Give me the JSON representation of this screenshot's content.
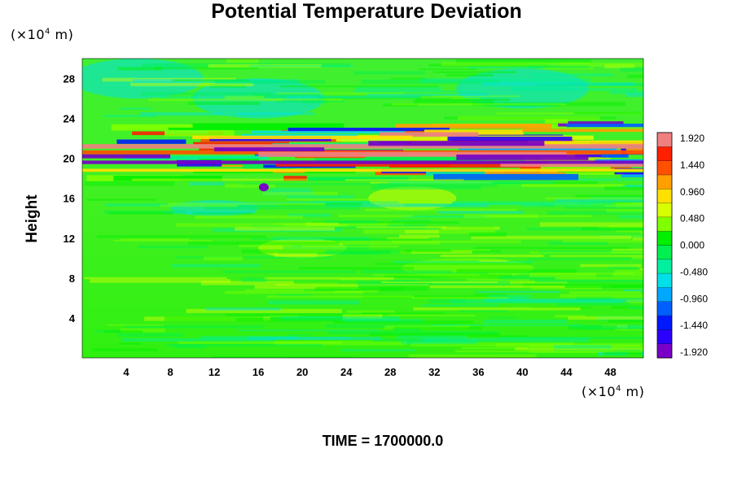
{
  "chart_data": {
    "type": "heatmap",
    "title": "Potential Temperature Deviation",
    "ylabel": "Height",
    "xlabel": "",
    "x_unit": {
      "prefix": "(×10",
      "exp": "4",
      "suffix": " m)"
    },
    "y_unit": {
      "prefix": "(×10",
      "exp": "4",
      "suffix": " m)"
    },
    "xlim": [
      0,
      51
    ],
    "ylim": [
      0,
      30
    ],
    "x_ticks": [
      4,
      8,
      12,
      16,
      20,
      24,
      28,
      32,
      36,
      40,
      44,
      48
    ],
    "y_ticks": [
      4,
      8,
      12,
      16,
      20,
      24,
      28
    ],
    "colorbar": {
      "range": [
        -1.92,
        1.92
      ],
      "tick_labels": [
        "1.920",
        "1.440",
        "0.960",
        "0.480",
        "0.000",
        "-0.480",
        "-0.960",
        "-1.440",
        "-1.920"
      ],
      "colors": [
        "#7a00c8",
        "#2c00ff",
        "#0018ff",
        "#0060ff",
        "#00a8ff",
        "#00e0e8",
        "#00f0a0",
        "#00f050",
        "#00f000",
        "#80ff00",
        "#d8ff00",
        "#ffe000",
        "#ffa000",
        "#ff5000",
        "#ff2000",
        "#f08080"
      ]
    },
    "features": {
      "background_value": 0.0,
      "strong_band_height_range": [
        19,
        23
      ],
      "strong_band_min": -1.92,
      "strong_band_max": 1.92
    },
    "caption_label": "TIME = ",
    "caption_value": "1700000.0"
  }
}
